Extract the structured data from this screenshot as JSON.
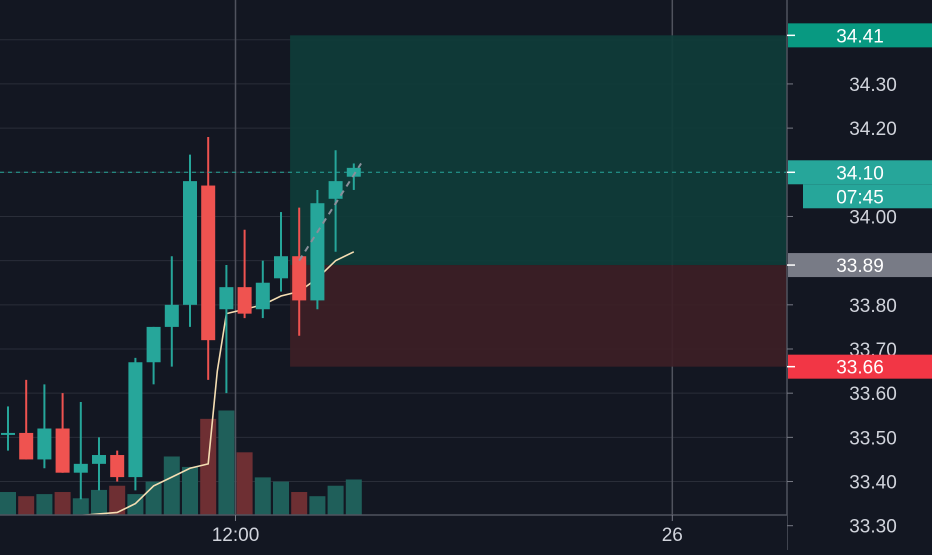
{
  "chart_data": {
    "type": "candlestick",
    "y_axis": {
      "ticks": [
        "34.30",
        "34.20",
        "34.00",
        "33.80",
        "33.70",
        "33.60",
        "33.50",
        "33.40",
        "33.30"
      ],
      "ylim": [
        33.245,
        34.49
      ]
    },
    "x_axis": {
      "ticks": [
        {
          "label": "12:00",
          "index": 12.5
        },
        {
          "label": "26",
          "index": 36.5
        }
      ]
    },
    "candles": [
      {
        "o": 33.51,
        "h": 33.57,
        "l": 33.47,
        "c": 33.51
      },
      {
        "o": 33.51,
        "h": 33.63,
        "l": 33.45,
        "c": 33.45
      },
      {
        "o": 33.45,
        "h": 33.62,
        "l": 33.43,
        "c": 33.52
      },
      {
        "o": 33.52,
        "h": 33.6,
        "l": 33.42,
        "c": 33.42
      },
      {
        "o": 33.42,
        "h": 33.58,
        "l": 33.36,
        "c": 33.44
      },
      {
        "o": 33.44,
        "h": 33.5,
        "l": 33.38,
        "c": 33.46
      },
      {
        "o": 33.46,
        "h": 33.47,
        "l": 33.4,
        "c": 33.41
      },
      {
        "o": 33.41,
        "h": 33.68,
        "l": 33.38,
        "c": 33.67
      },
      {
        "o": 33.67,
        "h": 33.75,
        "l": 33.62,
        "c": 33.75
      },
      {
        "o": 33.75,
        "h": 33.91,
        "l": 33.66,
        "c": 33.8
      },
      {
        "o": 33.8,
        "h": 34.14,
        "l": 33.75,
        "c": 34.08
      },
      {
        "o": 34.07,
        "h": 34.18,
        "l": 33.63,
        "c": 33.72
      },
      {
        "o": 33.79,
        "h": 33.89,
        "l": 33.6,
        "c": 33.84
      },
      {
        "o": 33.84,
        "h": 33.97,
        "l": 33.77,
        "c": 33.78
      },
      {
        "o": 33.79,
        "h": 33.9,
        "l": 33.77,
        "c": 33.85
      },
      {
        "o": 33.86,
        "h": 34.01,
        "l": 33.83,
        "c": 33.91
      },
      {
        "o": 33.91,
        "h": 34.02,
        "l": 33.73,
        "c": 33.81
      },
      {
        "o": 33.81,
        "h": 34.06,
        "l": 33.79,
        "c": 34.03
      },
      {
        "o": 34.04,
        "h": 34.15,
        "l": 33.92,
        "c": 34.08
      },
      {
        "o": 34.09,
        "h": 34.12,
        "l": 34.06,
        "c": 34.11
      }
    ],
    "volume": [
      11,
      9,
      10,
      11,
      8,
      12,
      14,
      10,
      16,
      28,
      23,
      46,
      50,
      30,
      18,
      16,
      11,
      9,
      14,
      17
    ],
    "volume_max": 100,
    "vwap": [
      {
        "i": 0,
        "v": 33.31
      },
      {
        "i": 3,
        "v": 33.32
      },
      {
        "i": 6,
        "v": 33.33
      },
      {
        "i": 7,
        "v": 33.35
      },
      {
        "i": 8,
        "v": 33.39
      },
      {
        "i": 9,
        "v": 33.41
      },
      {
        "i": 10,
        "v": 33.43
      },
      {
        "i": 11,
        "v": 33.44
      },
      {
        "i": 11.5,
        "v": 33.65
      },
      {
        "i": 12,
        "v": 33.78
      },
      {
        "i": 13,
        "v": 33.79
      },
      {
        "i": 14,
        "v": 33.8
      },
      {
        "i": 15,
        "v": 33.82
      },
      {
        "i": 16,
        "v": 33.83
      },
      {
        "i": 17,
        "v": 33.86
      },
      {
        "i": 18,
        "v": 33.9
      },
      {
        "i": 19,
        "v": 33.92
      }
    ],
    "position": {
      "entry": 33.89,
      "target": 34.41,
      "stop": 33.66,
      "start_index": 15.5,
      "end_index": 43.5
    },
    "current_price": {
      "value": 34.1,
      "label": "34.10",
      "countdown": "07:45"
    },
    "price_labels": {
      "target": "34.41",
      "entry": "33.89",
      "stop": "33.66"
    },
    "colors": {
      "background": "#131722",
      "up": "#26a69a",
      "down": "#ef5350",
      "vol_up": "#1f5f5a",
      "vol_down": "#6e2f33",
      "grid": "#2a2e39",
      "axis_text": "#d1d4dc",
      "vwap": "#f5deb3",
      "target_zone": "#0f3d3a",
      "stop_zone": "#3d1f26",
      "target_tag": "#089981",
      "stop_tag": "#f23645",
      "entry_tag": "#787b86",
      "current_tag": "#26a69a"
    }
  }
}
